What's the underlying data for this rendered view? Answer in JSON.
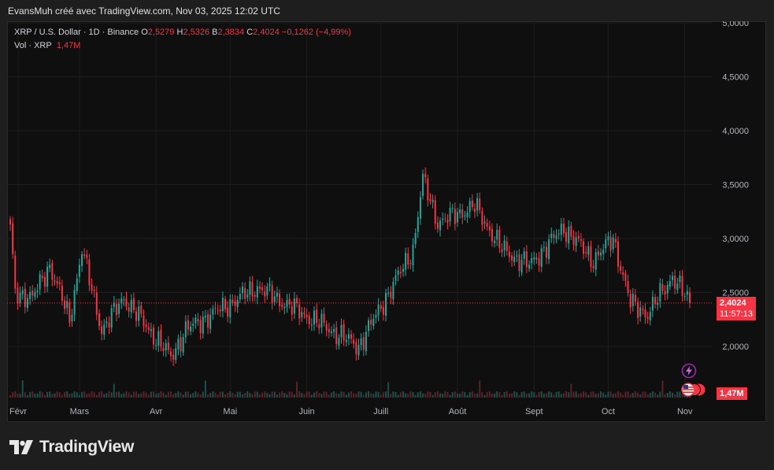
{
  "header": {
    "credit": "EvansMuh créé avec TradingView.com, Nov 03, 2025 12:02 UTC"
  },
  "legend": {
    "symbol": "XRP / U.S. Dollar · 1D · Binance",
    "o_label": "O",
    "o_value": "2,5279",
    "h_label": "H",
    "h_value": "2,5326",
    "b_label": "B",
    "b_value": "2,3834",
    "c_label": "C",
    "c_value": "2,4024",
    "change": "−0,1262 (−4,99%)"
  },
  "volume_legend": {
    "label": "Vol · XRP",
    "value": "1,47M"
  },
  "price_tag": {
    "price": "2,4024",
    "countdown": "11:57:13"
  },
  "volume_tag": "1,47M",
  "brand": {
    "name": "TradingView"
  },
  "colors": {
    "up": "#26a69a",
    "down": "#f23645",
    "background": "#0f0f0f",
    "grid": "#1f1f1f"
  },
  "icons": [
    "lightning-icon",
    "us-flag-icon"
  ],
  "chart_data": {
    "type": "candlestick",
    "title": "",
    "xlabel": "",
    "ylabel": "",
    "ylim": [
      1.5,
      5.0
    ],
    "y_ticks": [
      "5,0000",
      "4,5000",
      "4,0000",
      "3,5000",
      "3,0000",
      "2,5000",
      "2,0000"
    ],
    "x_ticks": [
      "Févr",
      "Mars",
      "Avr",
      "Mai",
      "Juin",
      "Juill",
      "Août",
      "Sept",
      "Oct",
      "Nov"
    ],
    "last_price": 2.4024,
    "key_points": [
      {
        "date": "2025-02-01",
        "close": 3.1
      },
      {
        "date": "2025-02-03",
        "close": 2.5
      },
      {
        "date": "2025-02-10",
        "close": 2.45
      },
      {
        "date": "2025-02-17",
        "close": 2.75
      },
      {
        "date": "2025-02-25",
        "close": 2.25
      },
      {
        "date": "2025-03-02",
        "close": 2.9
      },
      {
        "date": "2025-03-10",
        "close": 2.15
      },
      {
        "date": "2025-03-19",
        "close": 2.45
      },
      {
        "date": "2025-04-07",
        "close": 1.9
      },
      {
        "date": "2025-04-13",
        "close": 2.15
      },
      {
        "date": "2025-05-12",
        "close": 2.55
      },
      {
        "date": "2025-06-22",
        "close": 2.0
      },
      {
        "date": "2025-07-14",
        "close": 2.9
      },
      {
        "date": "2025-07-18",
        "close": 3.55
      },
      {
        "date": "2025-07-24",
        "close": 3.15
      },
      {
        "date": "2025-08-08",
        "close": 3.3
      },
      {
        "date": "2025-08-19",
        "close": 2.9
      },
      {
        "date": "2025-08-30",
        "close": 2.75
      },
      {
        "date": "2025-09-13",
        "close": 3.1
      },
      {
        "date": "2025-09-25",
        "close": 2.8
      },
      {
        "date": "2025-10-03",
        "close": 3.0
      },
      {
        "date": "2025-10-10",
        "close": 2.4
      },
      {
        "date": "2025-10-17",
        "close": 2.3
      },
      {
        "date": "2025-10-27",
        "close": 2.65
      },
      {
        "date": "2025-11-03",
        "close": 2.4
      }
    ]
  }
}
